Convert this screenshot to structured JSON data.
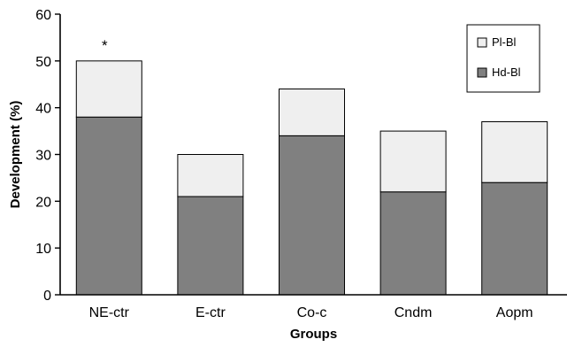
{
  "chart_data": {
    "type": "bar",
    "stacked": true,
    "categories": [
      "NE-ctr",
      "E-ctr",
      "Co-c",
      "Cndm",
      "Aopm"
    ],
    "series": [
      {
        "name": "Hd-Bl",
        "values": [
          38,
          21,
          34,
          22,
          24
        ],
        "color": "#808080"
      },
      {
        "name": "Pl-Bl",
        "values": [
          12,
          9,
          10,
          13,
          13
        ],
        "color": "#efefef"
      }
    ],
    "xlabel": "Groups",
    "ylabel": "Development (%)",
    "ylim": [
      0,
      60
    ],
    "yticks": [
      0,
      10,
      20,
      30,
      40,
      50,
      60
    ],
    "grid": false,
    "legend_placement": "top-right",
    "legend_order": [
      "Pl-Bl",
      "Hd-Bl"
    ],
    "annotations": [
      {
        "category": "NE-ctr",
        "text": "*"
      }
    ]
  }
}
